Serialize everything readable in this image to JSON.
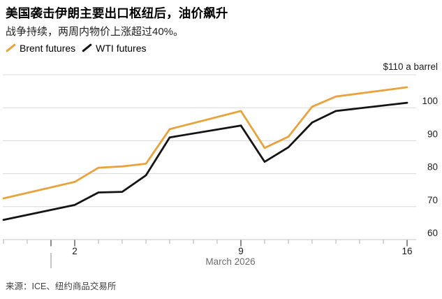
{
  "header": {
    "title": "美国袭击伊朗主要出口枢纽后，油价飙升",
    "subtitle": "战争持续，两周内物价上涨超过40%。"
  },
  "legend": [
    {
      "id": "brent",
      "label": "Brent futures",
      "color": "#E8A33D"
    },
    {
      "id": "wti",
      "label": "WTI futures",
      "color": "#141414"
    }
  ],
  "source": "来源：ICE、纽约商品交易所",
  "chart_data": {
    "type": "line",
    "title": "Oil price surge after U.S. strike on Iran export hub",
    "unit_label": "$110 a barrel",
    "x_axis_label": "March 2026",
    "categories": [
      "Feb 27",
      "Mar 2",
      "Mar 3",
      "Mar 4",
      "Mar 5",
      "Mar 6",
      "Mar 9",
      "Mar 10",
      "Mar 11",
      "Mar 12",
      "Mar 13",
      "Mar 16"
    ],
    "x_days": [
      -1,
      2,
      3,
      4,
      5,
      6,
      9,
      10,
      11,
      12,
      13,
      16
    ],
    "series": [
      {
        "name": "Brent futures",
        "color": "#E8A33D",
        "values": [
          72.5,
          77.5,
          81.8,
          82.2,
          83.0,
          93.5,
          99.0,
          87.8,
          91.2,
          100.3,
          103.4,
          106.2
        ]
      },
      {
        "name": "WTI futures",
        "color": "#141414",
        "values": [
          66.0,
          70.5,
          74.3,
          74.5,
          79.5,
          91.0,
          94.6,
          83.6,
          88.0,
          95.5,
          99.0,
          101.5
        ]
      }
    ],
    "ylim": [
      60,
      110
    ],
    "y_ticks": [
      110,
      100,
      90,
      80,
      70,
      60
    ],
    "x_tick_labels": [
      {
        "day": 2,
        "label": "2"
      },
      {
        "day": 9,
        "label": "9"
      },
      {
        "day": 16,
        "label": "16"
      }
    ],
    "month_start_day": 1,
    "grid": "horizontal",
    "legend_position": "top-left"
  }
}
